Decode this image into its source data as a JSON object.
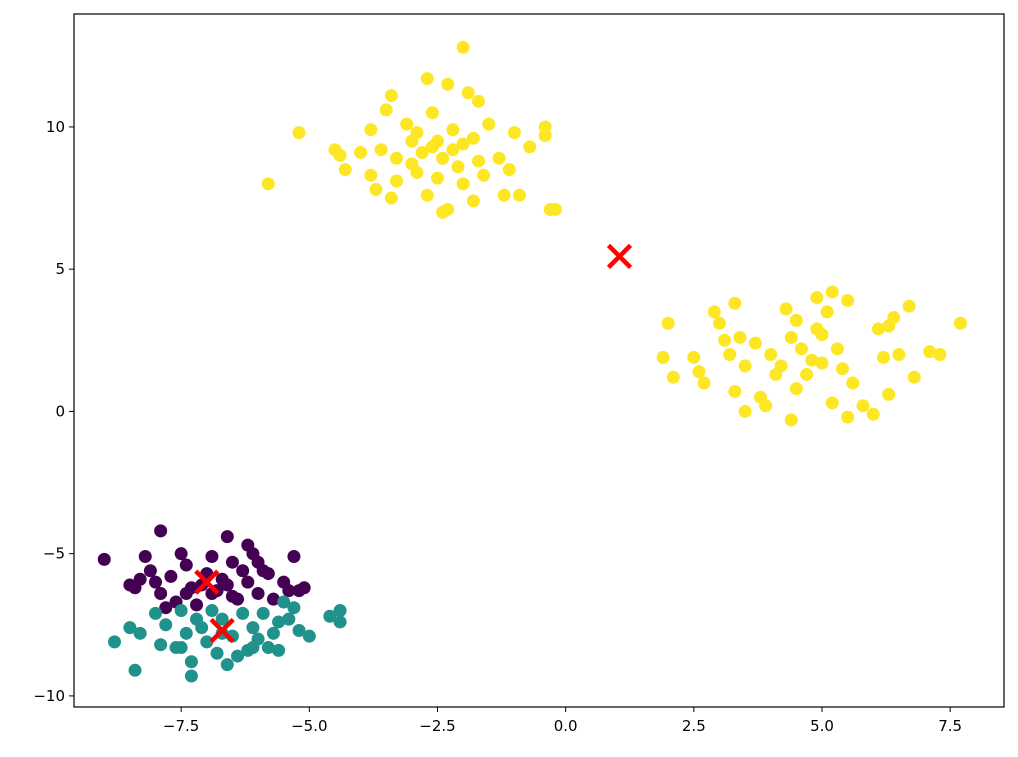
{
  "chart_data": {
    "type": "scatter",
    "xlim": [
      -9.59,
      8.55
    ],
    "ylim": [
      -10.39,
      13.97
    ],
    "xticks": [
      {
        "value": -7.5,
        "label": "−7.5"
      },
      {
        "value": -5.0,
        "label": "−5.0"
      },
      {
        "value": -2.5,
        "label": "−2.5"
      },
      {
        "value": 0.0,
        "label": "0.0"
      },
      2.5,
      {
        "value": 5.0,
        "label": "5.0"
      },
      7.5
    ],
    "yticks": [
      {
        "value": -10,
        "label": "−10"
      },
      {
        "value": -5,
        "label": "−5"
      },
      0,
      5,
      10
    ],
    "grid": false,
    "series": [
      {
        "color": "#fde725",
        "marker": "o",
        "x": [
          -2.0,
          -2.7,
          -2.3,
          -3.4,
          -1.9,
          -1.7,
          -3.5,
          -2.6,
          -5.2,
          -3.8,
          -3.1,
          -2.9,
          -2.5,
          -2.2,
          -1.8,
          -1.5,
          -1.0,
          -0.4,
          -0.4,
          -0.7,
          -4.5,
          -4.4,
          -4.0,
          -3.6,
          -3.3,
          -3.0,
          -2.8,
          -2.4,
          -2.1,
          -1.7,
          -1.3,
          -1.1,
          -4.3,
          -3.8,
          -3.3,
          -2.9,
          -2.5,
          -2.0,
          -1.6,
          -3.7,
          -3.4,
          -2.7,
          -2.3,
          -2.4,
          -1.8,
          -1.2,
          -0.9,
          -0.3,
          -0.2,
          -5.8,
          -2.6,
          -2.2,
          -2.0,
          -3.0,
          2.0,
          1.9,
          2.1,
          2.5,
          2.6,
          2.7,
          2.9,
          3.0,
          3.3,
          3.1,
          3.4,
          3.2,
          3.5,
          3.3,
          3.5,
          3.8,
          3.9,
          3.7,
          4.0,
          4.2,
          4.3,
          4.5,
          4.4,
          4.6,
          4.8,
          4.7,
          4.5,
          4.4,
          4.9,
          5.2,
          5.1,
          5.5,
          5.0,
          5.3,
          5.4,
          5.6,
          5.2,
          5.5,
          5.8,
          6.0,
          6.1,
          6.3,
          6.4,
          6.7,
          6.2,
          6.5,
          6.8,
          6.3,
          7.1,
          7.3,
          7.7,
          5.0,
          4.1,
          4.9
        ],
        "y": [
          12.8,
          11.7,
          11.5,
          11.1,
          11.2,
          10.9,
          10.6,
          10.5,
          9.8,
          9.9,
          10.1,
          9.8,
          9.5,
          9.9,
          9.6,
          10.1,
          9.8,
          10.0,
          9.7,
          9.3,
          9.2,
          9.0,
          9.1,
          9.2,
          8.9,
          8.7,
          9.1,
          8.9,
          8.6,
          8.8,
          8.9,
          8.5,
          8.5,
          8.3,
          8.1,
          8.4,
          8.2,
          8.0,
          8.3,
          7.8,
          7.5,
          7.6,
          7.1,
          7.0,
          7.4,
          7.6,
          7.6,
          7.1,
          7.1,
          8.0,
          9.3,
          9.2,
          9.4,
          9.5,
          3.1,
          1.9,
          1.2,
          1.9,
          1.4,
          1.0,
          3.5,
          3.1,
          3.8,
          2.5,
          2.6,
          2.0,
          1.6,
          0.7,
          0.0,
          0.5,
          0.2,
          2.4,
          2.0,
          1.6,
          3.6,
          3.2,
          2.6,
          2.2,
          1.8,
          1.3,
          0.8,
          -0.3,
          4.0,
          4.2,
          3.5,
          3.9,
          2.7,
          2.2,
          1.5,
          1.0,
          0.3,
          -0.2,
          0.2,
          -0.1,
          2.9,
          3.0,
          3.3,
          3.7,
          1.9,
          2.0,
          1.2,
          0.6,
          2.1,
          2.0,
          3.1,
          1.7,
          1.3,
          2.9
        ]
      },
      {
        "color": "#440154",
        "marker": "o",
        "x": [
          -9.0,
          -8.5,
          -8.4,
          -8.2,
          -8.1,
          -8.0,
          -7.9,
          -7.9,
          -7.7,
          -7.6,
          -7.5,
          -7.4,
          -7.3,
          -7.2,
          -7.0,
          -6.9,
          -6.8,
          -6.7,
          -6.6,
          -6.5,
          -6.4,
          -6.3,
          -6.2,
          -6.1,
          -6.0,
          -5.9,
          -5.8,
          -5.7,
          -5.5,
          -5.4,
          -5.3,
          -5.2,
          -5.1,
          -7.1,
          -6.9,
          -6.6,
          -6.2,
          -7.8,
          -6.0,
          -7.4,
          -6.5,
          -8.3
        ],
        "y": [
          -5.2,
          -6.1,
          -6.2,
          -5.1,
          -5.6,
          -6.0,
          -6.4,
          -4.2,
          -5.8,
          -6.7,
          -5.0,
          -5.4,
          -6.2,
          -6.8,
          -5.7,
          -5.1,
          -6.3,
          -5.9,
          -4.4,
          -5.3,
          -6.6,
          -5.6,
          -4.7,
          -5.0,
          -6.4,
          -5.6,
          -5.7,
          -6.6,
          -6.0,
          -6.3,
          -5.1,
          -6.3,
          -6.2,
          -6.1,
          -6.4,
          -6.1,
          -6.0,
          -6.9,
          -5.3,
          -6.4,
          -6.5,
          -5.9
        ]
      },
      {
        "color": "#21918c",
        "marker": "o",
        "x": [
          -8.8,
          -8.5,
          -8.3,
          -8.4,
          -8.0,
          -7.9,
          -7.8,
          -7.6,
          -7.5,
          -7.4,
          -7.3,
          -7.3,
          -7.2,
          -7.0,
          -6.9,
          -6.8,
          -6.7,
          -6.6,
          -6.5,
          -6.4,
          -6.3,
          -6.2,
          -6.1,
          -6.0,
          -5.9,
          -5.8,
          -5.7,
          -5.6,
          -5.5,
          -5.4,
          -5.3,
          -5.2,
          -5.0,
          -4.6,
          -4.4,
          -4.4,
          -7.1,
          -6.7,
          -7.5,
          -6.1,
          -5.6
        ],
        "y": [
          -8.1,
          -7.6,
          -7.8,
          -9.1,
          -7.1,
          -8.2,
          -7.5,
          -8.3,
          -7.0,
          -7.8,
          -8.8,
          -9.3,
          -7.3,
          -8.1,
          -7.0,
          -8.5,
          -7.3,
          -8.9,
          -7.9,
          -8.6,
          -7.1,
          -8.4,
          -7.6,
          -8.0,
          -7.1,
          -8.3,
          -7.8,
          -7.4,
          -6.7,
          -7.3,
          -6.9,
          -7.7,
          -7.9,
          -7.2,
          -7.0,
          -7.4,
          -7.6,
          -7.8,
          -8.3,
          -8.3,
          -8.4
        ]
      },
      {
        "color": "#ff0000",
        "marker": "x",
        "x": [
          -7.0,
          -6.7,
          1.05
        ],
        "y": [
          -6.0,
          -7.7,
          5.45
        ]
      }
    ]
  }
}
